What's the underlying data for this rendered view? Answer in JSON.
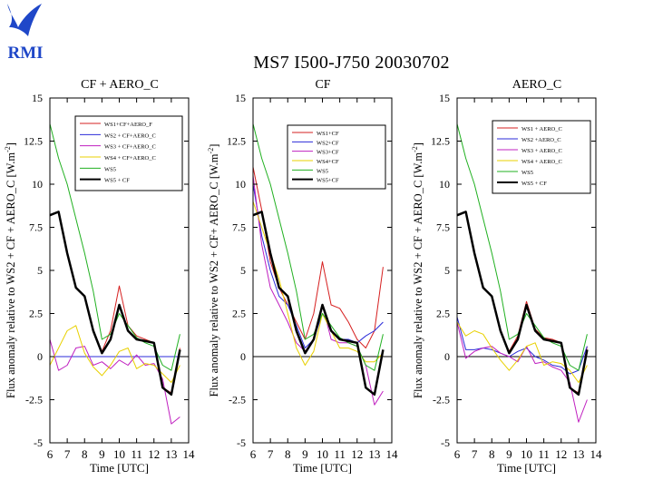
{
  "page": {
    "title": "MS7 I500-J750 20030702",
    "logo_text": "RMI",
    "logo_color": "#1f47c8"
  },
  "chart_data": [
    {
      "type": "line",
      "title": "CF + AERO_C",
      "xlabel": "Time [UTC]",
      "ylabel": "Flux anomaly relative to WS2 + CF + AERO_C [W.m",
      "ylabel_sup": "-2",
      "ylabel_end": "]",
      "xlim": [
        6,
        14
      ],
      "ylim": [
        -5,
        15
      ],
      "xticks": [
        6,
        7,
        8,
        9,
        10,
        11,
        12,
        13,
        14
      ],
      "yticks": [
        "-5",
        "-2.5",
        "0",
        "2.5",
        "5",
        "7.5",
        "10",
        "12.5",
        "15"
      ],
      "ytick_values": [
        -5,
        -2.5,
        0,
        2.5,
        5,
        7.5,
        10,
        12.5,
        15
      ],
      "legend_placement": "top-right",
      "series": [
        {
          "name": "WS1+CF+AERO_F",
          "color": "#d62020",
          "width": 1,
          "x": [
            6,
            6.5,
            7,
            7.5,
            8,
            8.5,
            9,
            9.5,
            10,
            10.5,
            11,
            11.5,
            12,
            12.5,
            13,
            13.5
          ],
          "y": [
            8.2,
            8.4,
            6.0,
            4.0,
            3.5,
            1.5,
            0.3,
            1.5,
            4.1,
            1.8,
            1.2,
            1.0,
            0.8,
            -1.8,
            -2.1,
            0.5
          ]
        },
        {
          "name": "WS2 + CF+AERO_C",
          "color": "#2b2bd8",
          "width": 1,
          "x": [
            6,
            6.5,
            7,
            7.5,
            8,
            8.5,
            9,
            9.5,
            10,
            10.5,
            11,
            11.5,
            12,
            12.5,
            13,
            13.5
          ],
          "y": [
            0,
            0,
            0,
            0,
            0,
            0,
            0,
            0,
            0,
            0,
            0,
            0,
            0,
            0,
            0,
            0
          ]
        },
        {
          "name": "WS3 + CF+AERO_C",
          "color": "#c020c0",
          "width": 1,
          "x": [
            6,
            6.5,
            7,
            7.5,
            8,
            8.5,
            9,
            9.5,
            10,
            10.5,
            11,
            11.5,
            12,
            12.5,
            13,
            13.5
          ],
          "y": [
            1.0,
            -0.8,
            -0.5,
            0.5,
            0.6,
            -0.5,
            -0.3,
            -0.7,
            -0.2,
            -0.5,
            0.1,
            -0.5,
            -0.4,
            -1.3,
            -3.9,
            -3.5
          ]
        },
        {
          "name": "WS4 + CF+AERO_C",
          "color": "#e8d000",
          "width": 1,
          "x": [
            6,
            6.5,
            7,
            7.5,
            8,
            8.5,
            9,
            9.5,
            10,
            10.5,
            11,
            11.5,
            12,
            12.5,
            13,
            13.5
          ],
          "y": [
            -0.5,
            0.5,
            1.5,
            1.8,
            0.2,
            -0.6,
            -1.1,
            -0.5,
            0.3,
            0.5,
            -0.7,
            -0.4,
            -0.5,
            -1.0,
            -1.5,
            -0.5
          ]
        },
        {
          "name": "WS5",
          "color": "#20b020",
          "width": 1,
          "x": [
            6,
            6.5,
            7,
            7.5,
            8,
            8.5,
            9,
            9.5,
            10,
            10.5,
            11,
            11.5,
            12,
            12.5,
            13,
            13.5
          ],
          "y": [
            13.5,
            11.5,
            10.0,
            8.0,
            6.0,
            3.8,
            1.0,
            1.3,
            2.5,
            1.8,
            1.1,
            0.8,
            0.6,
            -0.5,
            -0.8,
            1.3
          ]
        },
        {
          "name": "WS5 + CF",
          "color": "#000000",
          "width": 2.5,
          "x": [
            6,
            6.5,
            7,
            7.5,
            8,
            8.5,
            9,
            9.5,
            10,
            10.5,
            11,
            11.5,
            12,
            12.5,
            13,
            13.5
          ],
          "y": [
            8.2,
            8.4,
            6.0,
            4.0,
            3.5,
            1.5,
            0.2,
            1.0,
            3.0,
            1.5,
            1.0,
            0.9,
            0.8,
            -1.8,
            -2.2,
            0.4
          ]
        }
      ]
    },
    {
      "type": "line",
      "title": "CF",
      "xlabel": "Time [UTC]",
      "ylabel": "Flux anomaly relative to WS2 + CF+ AERO_C [W.m",
      "ylabel_sup": "-2",
      "ylabel_end": "]",
      "xlim": [
        6,
        14
      ],
      "ylim": [
        -5,
        15
      ],
      "xticks": [
        6,
        7,
        8,
        9,
        10,
        11,
        12,
        13,
        14
      ],
      "yticks": [
        "-5",
        "-2.5",
        "0",
        "2.5",
        "5",
        "7.5",
        "10",
        "12.5",
        "15"
      ],
      "ytick_values": [
        -5,
        -2.5,
        0,
        2.5,
        5,
        7.5,
        10,
        12.5,
        15
      ],
      "legend_placement": "top-right",
      "series": [
        {
          "name": "WS1+CF",
          "color": "#d62020",
          "width": 1,
          "x": [
            6,
            6.5,
            7,
            7.5,
            8,
            8.5,
            9,
            9.5,
            10,
            10.5,
            11,
            11.5,
            12,
            12.5,
            13,
            13.5
          ],
          "y": [
            11.0,
            8.5,
            5.5,
            4.0,
            3.0,
            2.0,
            1.0,
            2.5,
            5.5,
            3.0,
            2.8,
            2.0,
            1.0,
            0.5,
            1.5,
            5.2
          ]
        },
        {
          "name": "WS2+CF",
          "color": "#2b2bd8",
          "width": 1,
          "x": [
            6,
            6.5,
            7,
            7.5,
            8,
            8.5,
            9,
            9.5,
            10,
            10.5,
            11,
            11.5,
            12,
            12.5,
            13,
            13.5
          ],
          "y": [
            10.0,
            7.0,
            5.0,
            3.5,
            3.0,
            1.8,
            0.5,
            1.0,
            2.5,
            1.5,
            1.0,
            1.0,
            0.8,
            1.2,
            1.5,
            2.0
          ]
        },
        {
          "name": "WS3+CF",
          "color": "#c020c0",
          "width": 1,
          "x": [
            6,
            6.5,
            7,
            7.5,
            8,
            8.5,
            9,
            9.5,
            10,
            10.5,
            11,
            11.5,
            12,
            12.5,
            13,
            13.5
          ],
          "y": [
            10.5,
            6.5,
            4.0,
            3.0,
            2.0,
            0.8,
            0.3,
            1.0,
            3.0,
            1.0,
            0.8,
            0.8,
            0.6,
            -0.5,
            -2.8,
            -2.0
          ]
        },
        {
          "name": "WS4+CF",
          "color": "#e8d000",
          "width": 1,
          "x": [
            6,
            6.5,
            7,
            7.5,
            8,
            8.5,
            9,
            9.5,
            10,
            10.5,
            11,
            11.5,
            12,
            12.5,
            13,
            13.5
          ],
          "y": [
            9.0,
            7.5,
            6.0,
            4.5,
            2.5,
            0.5,
            -0.5,
            0.3,
            2.5,
            1.5,
            0.5,
            0.5,
            0.3,
            -0.3,
            -0.3,
            0.2
          ]
        },
        {
          "name": "WS5",
          "color": "#20b020",
          "width": 1,
          "x": [
            6,
            6.5,
            7,
            7.5,
            8,
            8.5,
            9,
            9.5,
            10,
            10.5,
            11,
            11.5,
            12,
            12.5,
            13,
            13.5
          ],
          "y": [
            13.5,
            11.5,
            10.0,
            8.0,
            6.0,
            3.8,
            1.0,
            1.3,
            2.5,
            1.8,
            1.1,
            0.8,
            0.6,
            -0.5,
            -0.8,
            1.3
          ]
        },
        {
          "name": "WS5+CF",
          "color": "#000000",
          "width": 2.5,
          "x": [
            6,
            6.5,
            7,
            7.5,
            8,
            8.5,
            9,
            9.5,
            10,
            10.5,
            11,
            11.5,
            12,
            12.5,
            13,
            13.5
          ],
          "y": [
            8.2,
            8.4,
            6.0,
            4.0,
            3.5,
            1.5,
            0.2,
            1.0,
            3.0,
            1.5,
            1.0,
            0.9,
            0.8,
            -1.8,
            -2.2,
            0.4
          ]
        }
      ]
    },
    {
      "type": "line",
      "title": "AERO_C",
      "xlabel": "Time [UTC]",
      "ylabel": "Flux anomaly relative to WS2 + CF + AERO_C [W.m",
      "ylabel_sup": "-2",
      "ylabel_end": "]",
      "xlim": [
        6,
        14
      ],
      "ylim": [
        -5,
        15
      ],
      "xticks": [
        6,
        7,
        8,
        9,
        10,
        11,
        12,
        13,
        14
      ],
      "yticks": [
        "-5",
        "-2.5",
        "0",
        "2.5",
        "5",
        "7.5",
        "10",
        "12.5",
        "15"
      ],
      "ytick_values": [
        -5,
        -2.5,
        0,
        2.5,
        5,
        7.5,
        10,
        12.5,
        15
      ],
      "legend_placement": "top-right",
      "series": [
        {
          "name": "WS1 + AERO_C",
          "color": "#d62020",
          "width": 1,
          "x": [
            6,
            6.5,
            7,
            7.5,
            8,
            8.5,
            9,
            9.5,
            10,
            10.5,
            11,
            11.5,
            12,
            12.5,
            13,
            13.5
          ],
          "y": [
            8.2,
            8.4,
            6.0,
            4.0,
            3.5,
            1.5,
            0.3,
            1.2,
            3.2,
            1.6,
            1.1,
            1.0,
            0.8,
            -1.8,
            -2.1,
            0.6
          ]
        },
        {
          "name": "WS2 +AERO_C",
          "color": "#2b2bd8",
          "width": 1,
          "x": [
            6,
            6.5,
            7,
            7.5,
            8,
            8.5,
            9,
            9.5,
            10,
            10.5,
            11,
            11.5,
            12,
            12.5,
            13,
            13.5
          ],
          "y": [
            2.3,
            0.4,
            0.4,
            0.5,
            0.4,
            0.2,
            0.0,
            0.3,
            0.5,
            0.0,
            -0.2,
            -0.5,
            -0.6,
            -1.0,
            -0.8,
            0.6
          ]
        },
        {
          "name": "WS3 + AERO_C",
          "color": "#c020c0",
          "width": 1,
          "x": [
            6,
            6.5,
            7,
            7.5,
            8,
            8.5,
            9,
            9.5,
            10,
            10.5,
            11,
            11.5,
            12,
            12.5,
            13,
            13.5
          ],
          "y": [
            2.0,
            -0.1,
            0.3,
            0.5,
            0.6,
            0.2,
            0.0,
            -0.3,
            0.6,
            -0.4,
            -0.3,
            -0.6,
            -0.8,
            -1.5,
            -3.8,
            -2.5
          ]
        },
        {
          "name": "WS4 + AERO_C",
          "color": "#e8d000",
          "width": 1,
          "x": [
            6,
            6.5,
            7,
            7.5,
            8,
            8.5,
            9,
            9.5,
            10,
            10.5,
            11,
            11.5,
            12,
            12.5,
            13,
            13.5
          ],
          "y": [
            2.0,
            1.2,
            1.5,
            1.3,
            0.5,
            -0.2,
            -0.8,
            -0.2,
            0.6,
            0.8,
            -0.5,
            -0.3,
            -0.4,
            -0.8,
            -1.5,
            -0.5
          ]
        },
        {
          "name": "WS5",
          "color": "#20b020",
          "width": 1,
          "x": [
            6,
            6.5,
            7,
            7.5,
            8,
            8.5,
            9,
            9.5,
            10,
            10.5,
            11,
            11.5,
            12,
            12.5,
            13,
            13.5
          ],
          "y": [
            13.5,
            11.5,
            10.0,
            8.0,
            6.0,
            3.8,
            1.0,
            1.3,
            2.5,
            1.8,
            1.1,
            0.8,
            0.6,
            -0.5,
            -0.8,
            1.3
          ]
        },
        {
          "name": "WS5 + CF",
          "color": "#000000",
          "width": 2.5,
          "x": [
            6,
            6.5,
            7,
            7.5,
            8,
            8.5,
            9,
            9.5,
            10,
            10.5,
            11,
            11.5,
            12,
            12.5,
            13,
            13.5
          ],
          "y": [
            8.2,
            8.4,
            6.0,
            4.0,
            3.5,
            1.5,
            0.2,
            1.0,
            3.0,
            1.5,
            1.0,
            0.9,
            0.8,
            -1.8,
            -2.2,
            0.4
          ]
        }
      ]
    }
  ]
}
